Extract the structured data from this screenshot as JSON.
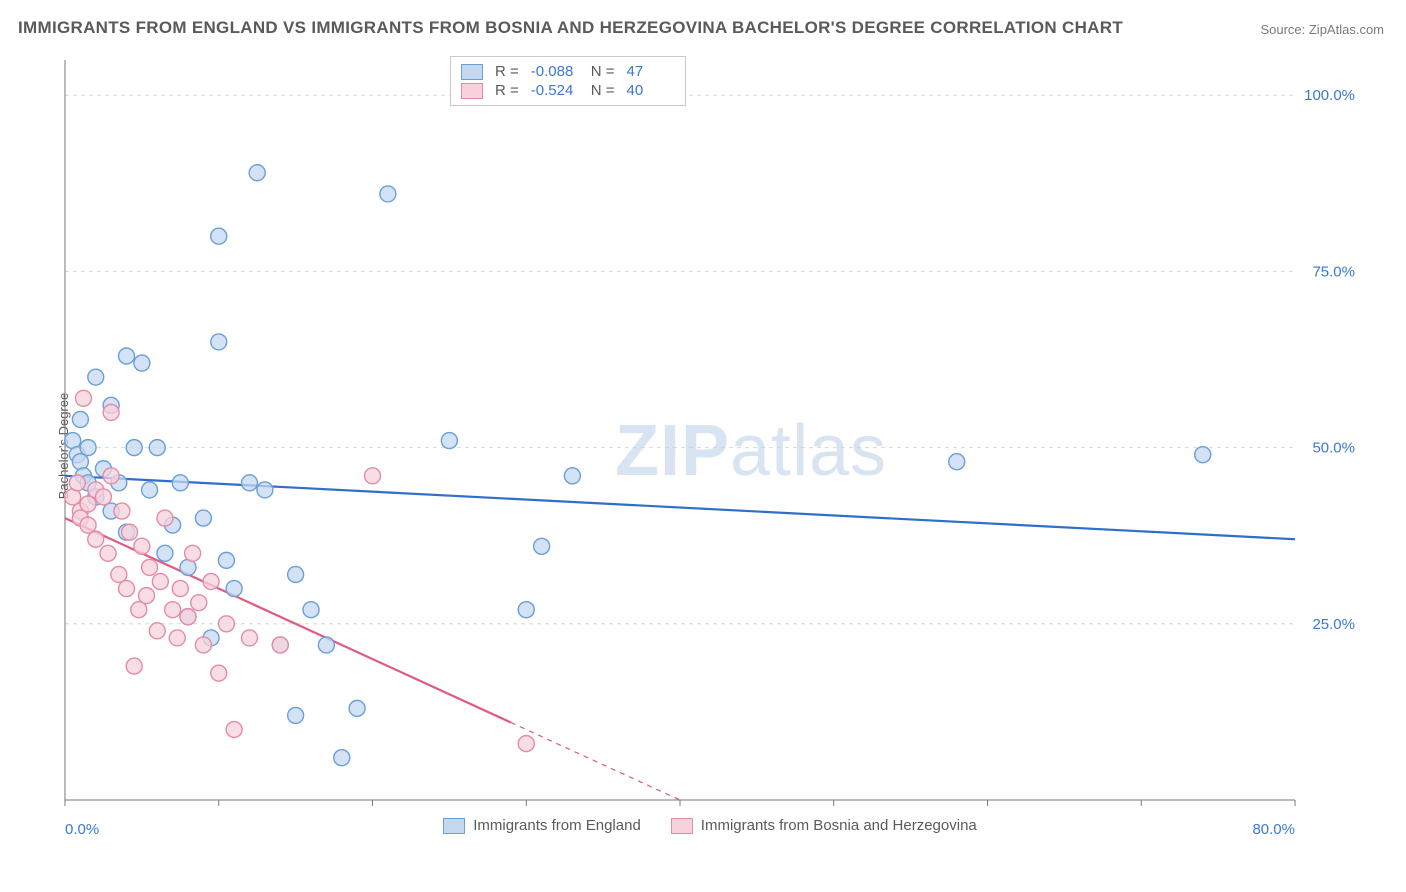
{
  "title": "IMMIGRANTS FROM ENGLAND VS IMMIGRANTS FROM BOSNIA AND HERZEGOVINA BACHELOR'S DEGREE CORRELATION CHART",
  "source_label": "Source: ZipAtlas.com",
  "y_axis_label": "Bachelor's Degree",
  "watermark_a": "ZIP",
  "watermark_b": "atlas",
  "chart": {
    "type": "scatter",
    "background_color": "#ffffff",
    "grid_color": "#d8d8d8",
    "axis_color": "#777777",
    "tick_color": "#3a78d6",
    "xlim": [
      0,
      80
    ],
    "ylim": [
      0,
      105
    ],
    "x_ticks": [
      0,
      80
    ],
    "x_tick_labels": [
      "0.0%",
      "80.0%"
    ],
    "y_ticks": [
      25,
      50,
      75,
      100
    ],
    "y_tick_labels": [
      "25.0%",
      "50.0%",
      "75.0%",
      "100.0%"
    ],
    "marker_radius": 8,
    "marker_stroke_width": 1.4,
    "line_width": 2.2,
    "series": [
      {
        "key": "england",
        "label": "Immigrants from England",
        "fill": "#c4d8f0",
        "stroke": "#6a9fd8",
        "line_color": "#2f6fc9",
        "r_value": "-0.088",
        "n_value": "47",
        "trend": {
          "x1": 0,
          "y1": 46,
          "x2": 80,
          "y2": 37,
          "x_solid_end": 80
        },
        "points": [
          [
            0.5,
            51
          ],
          [
            0.8,
            49
          ],
          [
            1,
            54
          ],
          [
            1,
            48
          ],
          [
            1.2,
            46
          ],
          [
            1.5,
            50
          ],
          [
            1.5,
            45
          ],
          [
            2,
            60
          ],
          [
            2,
            43
          ],
          [
            2.5,
            47
          ],
          [
            3,
            56
          ],
          [
            3,
            41
          ],
          [
            3.5,
            45
          ],
          [
            4,
            63
          ],
          [
            4,
            38
          ],
          [
            4.5,
            50
          ],
          [
            5,
            62
          ],
          [
            5.5,
            44
          ],
          [
            6,
            50
          ],
          [
            6.5,
            35
          ],
          [
            7,
            39
          ],
          [
            7.5,
            45
          ],
          [
            8,
            26
          ],
          [
            8,
            33
          ],
          [
            9,
            40
          ],
          [
            9.5,
            23
          ],
          [
            10,
            65
          ],
          [
            10,
            80
          ],
          [
            10.5,
            34
          ],
          [
            11,
            30
          ],
          [
            12,
            45
          ],
          [
            12.5,
            89
          ],
          [
            13,
            44
          ],
          [
            14,
            22
          ],
          [
            15,
            12
          ],
          [
            15,
            32
          ],
          [
            16,
            27
          ],
          [
            17,
            22
          ],
          [
            18,
            6
          ],
          [
            19,
            13
          ],
          [
            21,
            86
          ],
          [
            25,
            51
          ],
          [
            30,
            27
          ],
          [
            31,
            36
          ],
          [
            33,
            46
          ],
          [
            58,
            48
          ],
          [
            74,
            49
          ]
        ]
      },
      {
        "key": "bosnia",
        "label": "Immigrants from Bosnia and Herzegovina",
        "fill": "#f7d2dc",
        "stroke": "#e38ca5",
        "line_color": "#e05b82",
        "r_value": "-0.524",
        "n_value": "40",
        "trend": {
          "x1": 0,
          "y1": 40,
          "x2": 40,
          "y2": 0,
          "x_solid_end": 29
        },
        "points": [
          [
            0.5,
            43
          ],
          [
            0.8,
            45
          ],
          [
            1,
            41
          ],
          [
            1,
            40
          ],
          [
            1.2,
            57
          ],
          [
            1.5,
            42
          ],
          [
            1.5,
            39
          ],
          [
            2,
            44
          ],
          [
            2,
            37
          ],
          [
            2.5,
            43
          ],
          [
            2.8,
            35
          ],
          [
            3,
            46
          ],
          [
            3,
            55
          ],
          [
            3.5,
            32
          ],
          [
            3.7,
            41
          ],
          [
            4,
            30
          ],
          [
            4.2,
            38
          ],
          [
            4.5,
            19
          ],
          [
            4.8,
            27
          ],
          [
            5,
            36
          ],
          [
            5.3,
            29
          ],
          [
            5.5,
            33
          ],
          [
            6,
            24
          ],
          [
            6.2,
            31
          ],
          [
            6.5,
            40
          ],
          [
            7,
            27
          ],
          [
            7.3,
            23
          ],
          [
            7.5,
            30
          ],
          [
            8,
            26
          ],
          [
            8.3,
            35
          ],
          [
            8.7,
            28
          ],
          [
            9,
            22
          ],
          [
            9.5,
            31
          ],
          [
            10,
            18
          ],
          [
            10.5,
            25
          ],
          [
            11,
            10
          ],
          [
            12,
            23
          ],
          [
            14,
            22
          ],
          [
            20,
            46
          ],
          [
            30,
            8
          ]
        ]
      }
    ]
  },
  "legend_stats_label_r": "R =",
  "legend_stats_label_n": "N ="
}
